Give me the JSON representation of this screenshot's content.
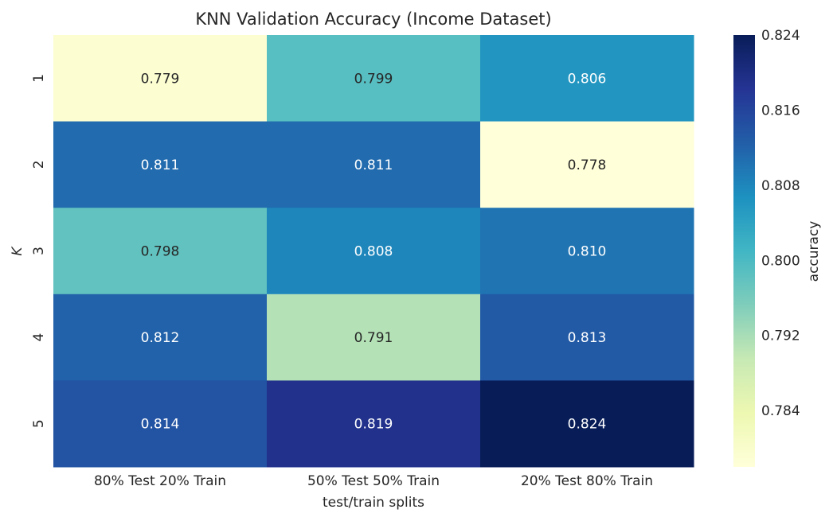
{
  "chart_data": {
    "type": "heatmap",
    "title": "KNN Validation Accuracy (Income Dataset)",
    "xlabel": "test/train splits",
    "ylabel": "K",
    "x_categories": [
      "80% Test 20% Train",
      "50% Test 50% Train",
      "20% Test 80% Train"
    ],
    "y_categories": [
      "1",
      "2",
      "3",
      "4",
      "5"
    ],
    "values": [
      [
        0.779,
        0.799,
        0.806
      ],
      [
        0.811,
        0.811,
        0.778
      ],
      [
        0.798,
        0.808,
        0.81
      ],
      [
        0.812,
        0.791,
        0.813
      ],
      [
        0.814,
        0.819,
        0.824
      ]
    ],
    "value_labels": [
      [
        "0.779",
        "0.799",
        "0.806"
      ],
      [
        "0.811",
        "0.811",
        "0.778"
      ],
      [
        "0.798",
        "0.808",
        "0.810"
      ],
      [
        "0.812",
        "0.791",
        "0.813"
      ],
      [
        "0.814",
        "0.819",
        "0.824"
      ]
    ],
    "colormap": "YlGnBu",
    "vmin": 0.778,
    "vmax": 0.824,
    "colorbar": {
      "label": "accuracy",
      "ticks": [
        0.784,
        0.792,
        0.8,
        0.808,
        0.816,
        0.824
      ],
      "tick_labels": [
        "0.784",
        "0.792",
        "0.800",
        "0.808",
        "0.816",
        "0.824"
      ]
    },
    "grid": false,
    "legend": "colorbar-right"
  }
}
